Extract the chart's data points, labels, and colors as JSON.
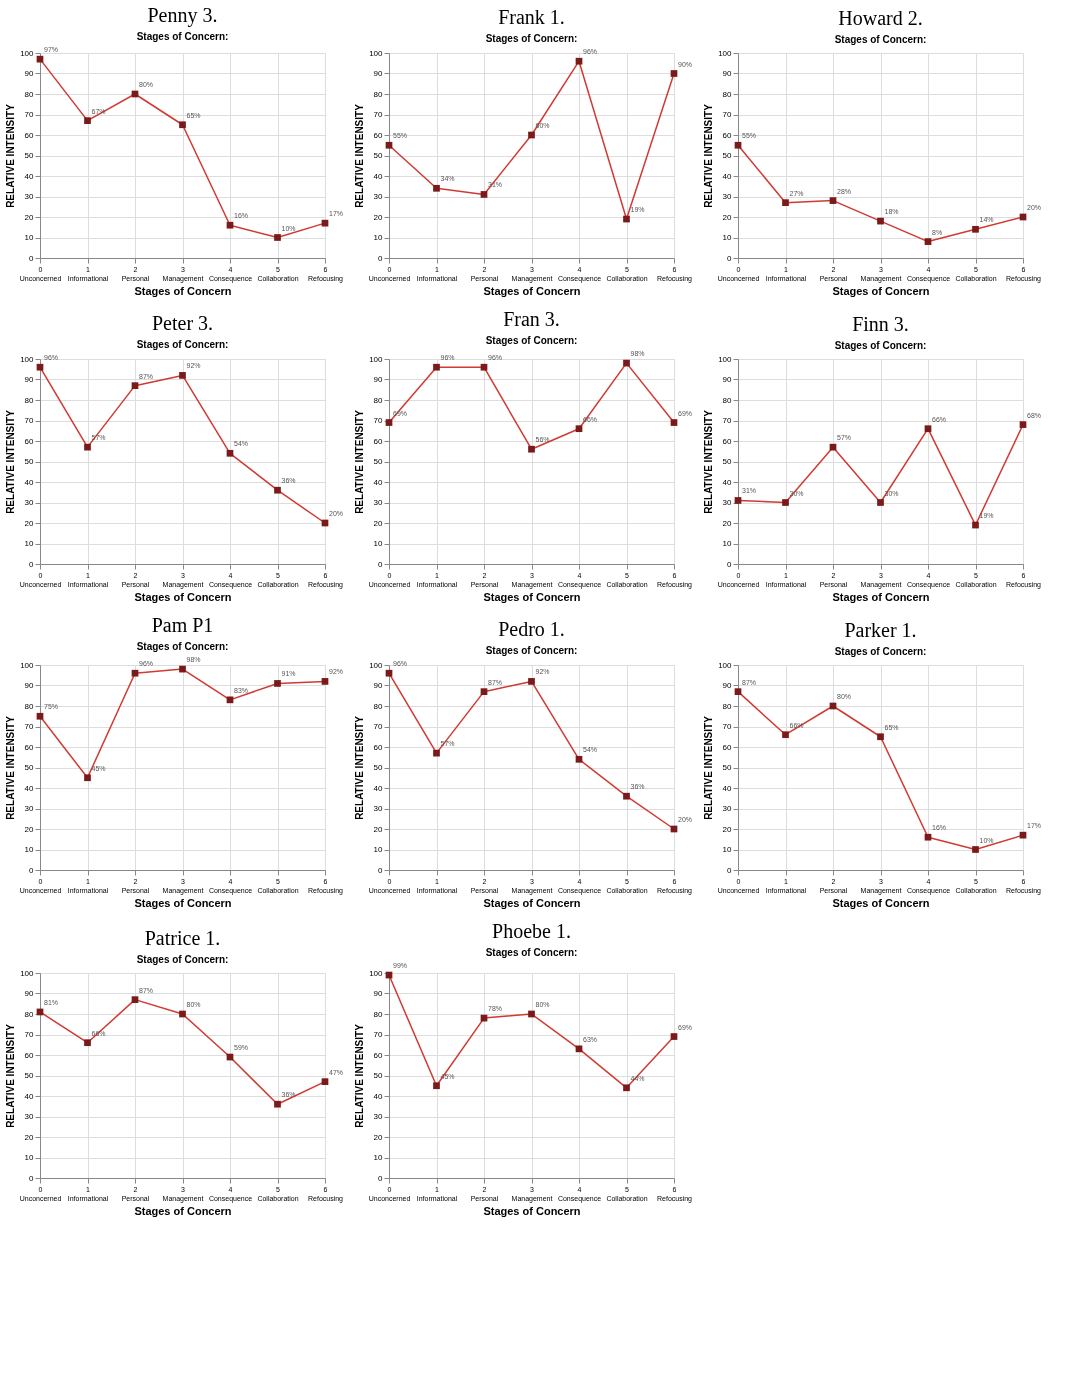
{
  "chart_data": [
    {
      "type": "line",
      "title": "Penny 3.",
      "subtitle": "Stages of Concern:",
      "xlabel": "Stages of Concern",
      "ylabel": "RELATIVE INTENSITY",
      "categories": [
        "0 Unconcerned",
        "1 Informational",
        "2 Personal",
        "3 Management",
        "4 Consequence",
        "5 Collaboration",
        "6 Refocusing"
      ],
      "series": [
        {
          "color": "#d03a32",
          "values": [
            97,
            67,
            80,
            65,
            16,
            10,
            17
          ],
          "value_labels": [
            "97%",
            "67%",
            "80%",
            "65%",
            "16%",
            "10%",
            "17%"
          ]
        }
      ],
      "ylim": [
        0,
        100
      ],
      "yticks": [
        0,
        10,
        20,
        30,
        40,
        50,
        60,
        70,
        80,
        90,
        100
      ],
      "grid": true,
      "marker": "square"
    },
    {
      "type": "line",
      "title": "Frank 1.",
      "subtitle": "Stages of Concern:",
      "xlabel": "Stages of Concern",
      "ylabel": "RELATIVE INTENSITY",
      "categories": [
        "0 Unconcerned",
        "1 Informational",
        "2 Personal",
        "3 Management",
        "4 Consequence",
        "5 Collaboration",
        "6 Refocusing"
      ],
      "series": [
        {
          "color": "#d03a32",
          "values": [
            55,
            34,
            31,
            60,
            96,
            19,
            90
          ],
          "value_labels": [
            "55%",
            "34%",
            "31%",
            "60%",
            "96%",
            "19%",
            "90%"
          ]
        }
      ],
      "ylim": [
        0,
        100
      ],
      "yticks": [
        0,
        10,
        20,
        30,
        40,
        50,
        60,
        70,
        80,
        90,
        100
      ],
      "grid": true,
      "marker": "square"
    },
    {
      "type": "line",
      "title": "Howard 2.",
      "subtitle": "Stages of Concern:",
      "xlabel": "Stages of Concern",
      "ylabel": "RELATIVE INTENSITY",
      "categories": [
        "0 Unconcerned",
        "1 Informational",
        "2 Personal",
        "3 Management",
        "4 Consequence",
        "5 Collaboration",
        "6 Refocusing"
      ],
      "series": [
        {
          "color": "#d03a32",
          "values": [
            55,
            27,
            28,
            18,
            8,
            14,
            20
          ],
          "value_labels": [
            "55%",
            "27%",
            "28%",
            "18%",
            "8%",
            "14%",
            "20%"
          ]
        }
      ],
      "ylim": [
        0,
        100
      ],
      "yticks": [
        0,
        10,
        20,
        30,
        40,
        50,
        60,
        70,
        80,
        90,
        100
      ],
      "grid": true,
      "marker": "square"
    },
    {
      "type": "line",
      "title": "Peter 3.",
      "subtitle": "Stages of Concern:",
      "xlabel": "Stages of Concern",
      "ylabel": "RELATIVE INTENSITY",
      "categories": [
        "0 Unconcerned",
        "1 Informational",
        "2 Personal",
        "3 Management",
        "4 Consequence",
        "5 Collaboration",
        "6 Refocusing"
      ],
      "series": [
        {
          "color": "#d03a32",
          "values": [
            96,
            57,
            87,
            92,
            54,
            36,
            20
          ],
          "value_labels": [
            "96%",
            "57%",
            "87%",
            "92%",
            "54%",
            "36%",
            "20%"
          ]
        }
      ],
      "ylim": [
        0,
        100
      ],
      "yticks": [
        0,
        10,
        20,
        30,
        40,
        50,
        60,
        70,
        80,
        90,
        100
      ],
      "grid": true,
      "marker": "square"
    },
    {
      "type": "line",
      "title": "Fran 3.",
      "subtitle": "Stages of Concern:",
      "xlabel": "Stages of Concern",
      "ylabel": "RELATIVE INTENSITY",
      "categories": [
        "0 Unconcerned",
        "1 Informational",
        "2 Personal",
        "3 Management",
        "4 Consequence",
        "5 Collaboration",
        "6 Refocusing"
      ],
      "series": [
        {
          "color": "#d03a32",
          "values": [
            69,
            96,
            96,
            56,
            66,
            98,
            69
          ],
          "value_labels": [
            "69%",
            "96%",
            "96%",
            "56%",
            "66%",
            "98%",
            "69%"
          ]
        }
      ],
      "ylim": [
        0,
        100
      ],
      "yticks": [
        0,
        10,
        20,
        30,
        40,
        50,
        60,
        70,
        80,
        90,
        100
      ],
      "grid": true,
      "marker": "square"
    },
    {
      "type": "line",
      "title": "Finn 3.",
      "subtitle": "Stages of Concern:",
      "xlabel": "Stages of Concern",
      "ylabel": "RELATIVE INTENSITY",
      "categories": [
        "0 Unconcerned",
        "1 Informational",
        "2 Personal",
        "3 Management",
        "4 Consequence",
        "5 Collaboration",
        "6 Refocusing"
      ],
      "series": [
        {
          "color": "#d03a32",
          "values": [
            31,
            30,
            57,
            30,
            66,
            19,
            68
          ],
          "value_labels": [
            "31%",
            "30%",
            "57%",
            "30%",
            "66%",
            "19%",
            "68%"
          ]
        }
      ],
      "ylim": [
        0,
        100
      ],
      "yticks": [
        0,
        10,
        20,
        30,
        40,
        50,
        60,
        70,
        80,
        90,
        100
      ],
      "grid": true,
      "marker": "square"
    },
    {
      "type": "line",
      "title": "Pam P1",
      "subtitle": "Stages of Concern:",
      "xlabel": "Stages of Concern",
      "ylabel": "RELATIVE INTENSITY",
      "categories": [
        "0 Unconcerned",
        "1 Informational",
        "2 Personal",
        "3 Management",
        "4 Consequence",
        "5 Collaboration",
        "6 Refocusing"
      ],
      "series": [
        {
          "color": "#d03a32",
          "values": [
            75,
            45,
            96,
            98,
            83,
            91,
            92
          ],
          "value_labels": [
            "75%",
            "45%",
            "96%",
            "98%",
            "83%",
            "91%",
            "92%"
          ]
        }
      ],
      "ylim": [
        0,
        100
      ],
      "yticks": [
        0,
        10,
        20,
        30,
        40,
        50,
        60,
        70,
        80,
        90,
        100
      ],
      "grid": true,
      "marker": "square"
    },
    {
      "type": "line",
      "title": "Pedro 1.",
      "subtitle": "Stages of Concern:",
      "xlabel": "Stages of Concern",
      "ylabel": "RELATIVE INTENSITY",
      "categories": [
        "0 Unconcerned",
        "1 Informational",
        "2 Personal",
        "3 Management",
        "4 Consequence",
        "5 Collaboration",
        "6 Refocusing"
      ],
      "series": [
        {
          "color": "#d03a32",
          "values": [
            96,
            57,
            87,
            92,
            54,
            36,
            20
          ],
          "value_labels": [
            "96%",
            "57%",
            "87%",
            "92%",
            "54%",
            "36%",
            "20%"
          ]
        }
      ],
      "ylim": [
        0,
        100
      ],
      "yticks": [
        0,
        10,
        20,
        30,
        40,
        50,
        60,
        70,
        80,
        90,
        100
      ],
      "grid": true,
      "marker": "square"
    },
    {
      "type": "line",
      "title": "Parker 1.",
      "subtitle": "Stages of Concern:",
      "xlabel": "Stages of Concern",
      "ylabel": "RELATIVE INTENSITY",
      "categories": [
        "0 Unconcerned",
        "1 Informational",
        "2 Personal",
        "3 Management",
        "4 Consequence",
        "5 Collaboration",
        "6 Refocusing"
      ],
      "series": [
        {
          "color": "#d03a32",
          "values": [
            87,
            66,
            80,
            65,
            16,
            10,
            17
          ],
          "value_labels": [
            "87%",
            "66%",
            "80%",
            "65%",
            "16%",
            "10%",
            "17%"
          ]
        }
      ],
      "ylim": [
        0,
        100
      ],
      "yticks": [
        0,
        10,
        20,
        30,
        40,
        50,
        60,
        70,
        80,
        90,
        100
      ],
      "grid": true,
      "marker": "square"
    },
    {
      "type": "line",
      "title": "Patrice 1.",
      "subtitle": "Stages of Concern:",
      "xlabel": "Stages of Concern",
      "ylabel": "RELATIVE INTENSITY",
      "categories": [
        "0 Unconcerned",
        "1 Informational",
        "2 Personal",
        "3 Management",
        "4 Consequence",
        "5 Collaboration",
        "6 Refocusing"
      ],
      "series": [
        {
          "color": "#d03a32",
          "values": [
            81,
            66,
            87,
            80,
            59,
            36,
            47
          ],
          "value_labels": [
            "81%",
            "66%",
            "87%",
            "80%",
            "59%",
            "36%",
            "47%"
          ]
        }
      ],
      "ylim": [
        0,
        100
      ],
      "yticks": [
        0,
        10,
        20,
        30,
        40,
        50,
        60,
        70,
        80,
        90,
        100
      ],
      "grid": true,
      "marker": "square"
    },
    {
      "type": "line",
      "title": "Phoebe 1.",
      "subtitle": "Stages of Concern:",
      "xlabel": "Stages of Concern",
      "ylabel": "RELATIVE INTENSITY",
      "categories": [
        "0 Unconcerned",
        "1 Informational",
        "2 Personal",
        "3 Management",
        "4 Consequence",
        "5 Collaboration",
        "6 Refocusing"
      ],
      "series": [
        {
          "color": "#d03a32",
          "values": [
            99,
            45,
            78,
            80,
            63,
            44,
            69
          ],
          "value_labels": [
            "99%",
            "45%",
            "78%",
            "80%",
            "63%",
            "44%",
            "69%"
          ]
        }
      ],
      "ylim": [
        0,
        100
      ],
      "yticks": [
        0,
        10,
        20,
        30,
        40,
        50,
        60,
        70,
        80,
        90,
        100
      ],
      "grid": true,
      "marker": "square"
    }
  ]
}
